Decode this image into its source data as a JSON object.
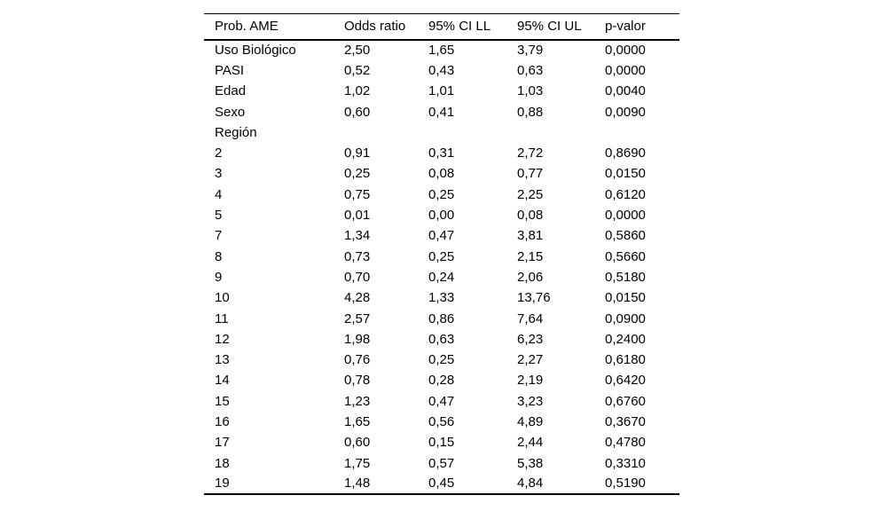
{
  "colors": {
    "background": "#ffffff",
    "text": "#000000",
    "rule": "#000000"
  },
  "table": {
    "columns": [
      "Prob. AME",
      "Odds ratio",
      "95% CI LL",
      "95% CI UL",
      "p-valor"
    ],
    "rows": [
      {
        "cells": [
          "Uso Biológico",
          "2,50",
          "1,65",
          "3,79",
          "0,0000"
        ]
      },
      {
        "cells": [
          "PASI",
          "0,52",
          "0,43",
          "0,63",
          "0,0000"
        ]
      },
      {
        "cells": [
          "Edad",
          "1,02",
          "1,01",
          "1,03",
          "0,0040"
        ]
      },
      {
        "cells": [
          "Sexo",
          "0,60",
          "0,41",
          "0,88",
          "0,0090"
        ]
      },
      {
        "cells": [
          "Región",
          "",
          "",
          "",
          ""
        ]
      },
      {
        "cells": [
          "2",
          "0,91",
          "0,31",
          "2,72",
          "0,8690"
        ]
      },
      {
        "cells": [
          "3",
          "0,25",
          "0,08",
          "0,77",
          "0,0150"
        ]
      },
      {
        "cells": [
          "4",
          "0,75",
          "0,25",
          "2,25",
          "0,6120"
        ]
      },
      {
        "cells": [
          "5",
          "0,01",
          "0,00",
          "0,08",
          "0,0000"
        ]
      },
      {
        "cells": [
          "7",
          "1,34",
          "0,47",
          "3,81",
          "0,5860"
        ]
      },
      {
        "cells": [
          "8",
          "0,73",
          "0,25",
          "2,15",
          "0,5660"
        ]
      },
      {
        "cells": [
          "9",
          "0,70",
          "0,24",
          "2,06",
          "0,5180"
        ]
      },
      {
        "cells": [
          "10",
          "4,28",
          "1,33",
          "13,76",
          "0,0150"
        ]
      },
      {
        "cells": [
          "11",
          "2,57",
          "0,86",
          "7,64",
          "0,0900"
        ]
      },
      {
        "cells": [
          "12",
          "1,98",
          "0,63",
          "6,23",
          "0,2400"
        ]
      },
      {
        "cells": [
          "13",
          "0,76",
          "0,25",
          "2,27",
          "0,6180"
        ]
      },
      {
        "cells": [
          "14",
          "0,78",
          "0,28",
          "2,19",
          "0,6420"
        ]
      },
      {
        "cells": [
          "15",
          "1,23",
          "0,47",
          "3,23",
          "0,6760"
        ]
      },
      {
        "cells": [
          "16",
          "1,65",
          "0,56",
          "4,89",
          "0,3670"
        ]
      },
      {
        "cells": [
          "17",
          "0,60",
          "0,15",
          "2,44",
          "0,4780"
        ]
      },
      {
        "cells": [
          "18",
          "1,75",
          "0,57",
          "5,38",
          "0,3310"
        ]
      },
      {
        "cells": [
          "19",
          "1,48",
          "0,45",
          "4,84",
          "0,5190"
        ]
      }
    ]
  }
}
